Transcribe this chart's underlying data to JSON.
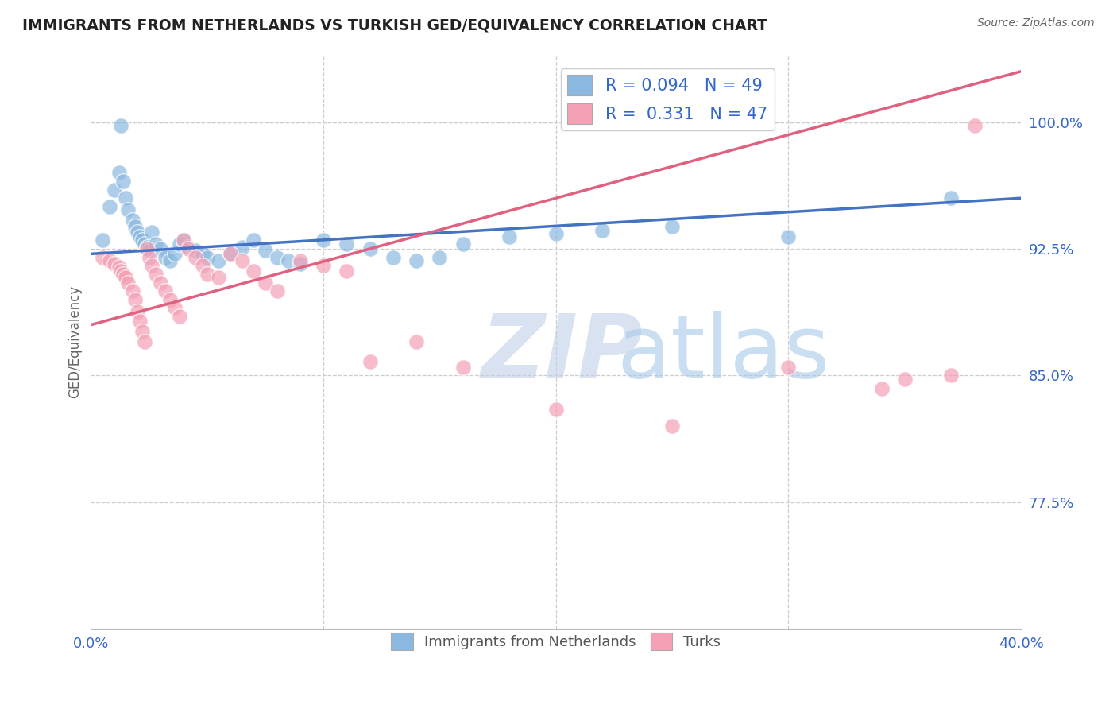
{
  "title": "IMMIGRANTS FROM NETHERLANDS VS TURKISH GED/EQUIVALENCY CORRELATION CHART",
  "source": "Source: ZipAtlas.com",
  "ylabel": "GED/Equivalency",
  "yticks": [
    0.775,
    0.85,
    0.925,
    1.0
  ],
  "ytick_labels": [
    "77.5%",
    "85.0%",
    "92.5%",
    "100.0%"
  ],
  "xlim": [
    0.0,
    0.4
  ],
  "ylim": [
    0.7,
    1.04
  ],
  "R_netherlands": 0.094,
  "N_netherlands": 49,
  "R_turks": 0.331,
  "N_turks": 47,
  "color_netherlands": "#8ab8e0",
  "color_turks": "#f4a0b5",
  "color_line_netherlands": "#4472c4",
  "color_line_turks": "#e06080",
  "color_axis_labels": "#3366cc",
  "color_title": "#222222",
  "color_source": "#666666",
  "legend_label_netherlands": "Immigrants from Netherlands",
  "legend_label_turks": "Turks",
  "watermark_zip_color": "#c0cfe8",
  "watermark_atlas_color": "#a8c8e8",
  "nl_x": [
    0.005,
    0.008,
    0.01,
    0.012,
    0.013,
    0.014,
    0.015,
    0.016,
    0.018,
    0.019,
    0.02,
    0.021,
    0.022,
    0.023,
    0.024,
    0.025,
    0.026,
    0.028,
    0.03,
    0.032,
    0.034,
    0.036,
    0.038,
    0.04,
    0.042,
    0.045,
    0.048,
    0.05,
    0.055,
    0.06,
    0.065,
    0.07,
    0.075,
    0.08,
    0.085,
    0.09,
    0.1,
    0.11,
    0.12,
    0.13,
    0.14,
    0.15,
    0.16,
    0.18,
    0.2,
    0.22,
    0.25,
    0.3,
    0.37
  ],
  "nl_y": [
    0.93,
    0.95,
    0.96,
    0.97,
    0.998,
    0.965,
    0.955,
    0.948,
    0.942,
    0.938,
    0.935,
    0.932,
    0.93,
    0.928,
    0.926,
    0.924,
    0.935,
    0.928,
    0.925,
    0.92,
    0.918,
    0.922,
    0.928,
    0.93,
    0.926,
    0.924,
    0.922,
    0.92,
    0.918,
    0.922,
    0.926,
    0.93,
    0.924,
    0.92,
    0.918,
    0.916,
    0.93,
    0.928,
    0.925,
    0.92,
    0.918,
    0.92,
    0.928,
    0.932,
    0.934,
    0.936,
    0.938,
    0.932,
    0.955
  ],
  "turks_x": [
    0.005,
    0.008,
    0.01,
    0.012,
    0.013,
    0.014,
    0.015,
    0.016,
    0.018,
    0.019,
    0.02,
    0.021,
    0.022,
    0.023,
    0.024,
    0.025,
    0.026,
    0.028,
    0.03,
    0.032,
    0.034,
    0.036,
    0.038,
    0.04,
    0.042,
    0.045,
    0.048,
    0.05,
    0.055,
    0.06,
    0.065,
    0.07,
    0.075,
    0.08,
    0.09,
    0.1,
    0.11,
    0.12,
    0.14,
    0.16,
    0.2,
    0.25,
    0.3,
    0.34,
    0.35,
    0.37,
    0.38
  ],
  "turks_y": [
    0.92,
    0.918,
    0.916,
    0.914,
    0.912,
    0.91,
    0.908,
    0.905,
    0.9,
    0.895,
    0.888,
    0.882,
    0.876,
    0.87,
    0.925,
    0.92,
    0.915,
    0.91,
    0.905,
    0.9,
    0.895,
    0.89,
    0.885,
    0.93,
    0.925,
    0.92,
    0.915,
    0.91,
    0.908,
    0.922,
    0.918,
    0.912,
    0.905,
    0.9,
    0.918,
    0.915,
    0.912,
    0.858,
    0.87,
    0.855,
    0.83,
    0.82,
    0.855,
    0.842,
    0.848,
    0.85,
    0.998
  ]
}
